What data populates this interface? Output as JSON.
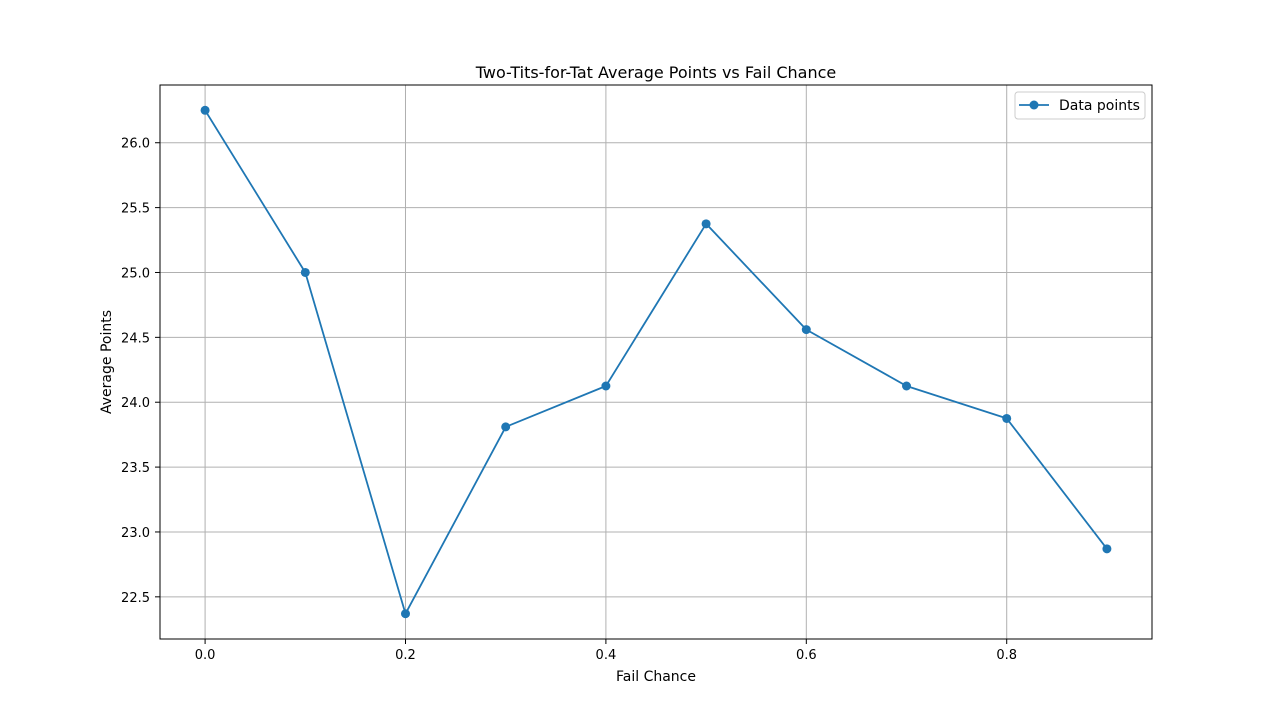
{
  "chart_data": {
    "type": "line",
    "title": "Two-Tits-for-Tat Average Points vs Fail Chance",
    "xlabel": "Fail Chance",
    "ylabel": "Average Points",
    "xlim": [
      -0.045,
      0.945
    ],
    "ylim": [
      22.175,
      26.445
    ],
    "xticks": [
      0.0,
      0.2,
      0.4,
      0.6,
      0.8
    ],
    "xtick_labels": [
      "0.0",
      "0.2",
      "0.4",
      "0.6",
      "0.8"
    ],
    "yticks": [
      22.5,
      23.0,
      23.5,
      24.0,
      24.5,
      25.0,
      25.5,
      26.0
    ],
    "ytick_labels": [
      "22.5",
      "23.0",
      "23.5",
      "24.0",
      "24.5",
      "25.0",
      "25.5",
      "26.0"
    ],
    "grid": true,
    "legend_position": "top-right",
    "series": [
      {
        "name": "Data points",
        "color": "#1f77b4",
        "marker": "circle",
        "x": [
          0.0,
          0.1,
          0.2,
          0.3,
          0.4,
          0.5,
          0.6,
          0.7,
          0.8,
          0.9
        ],
        "y": [
          26.25,
          25.0,
          22.37,
          23.81,
          24.125,
          25.375,
          24.56,
          24.125,
          23.875,
          22.87
        ]
      }
    ]
  }
}
